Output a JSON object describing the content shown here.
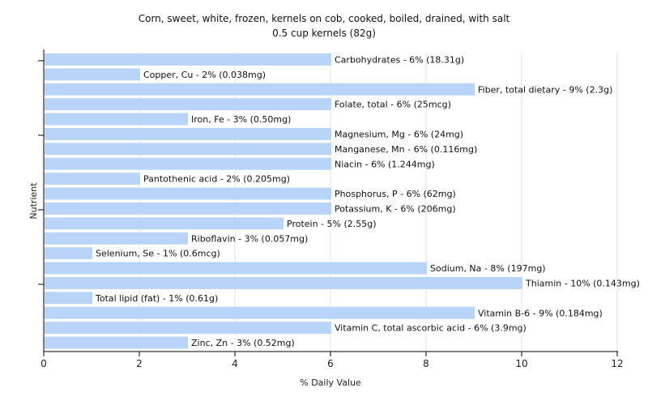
{
  "chart_data": {
    "type": "bar",
    "orientation": "horizontal",
    "title": "Corn, sweet, white, frozen, kernels on cob, cooked, boiled, drained, with salt",
    "subtitle": "0.5 cup kernels (82g)",
    "xlabel": "% Daily Value",
    "ylabel": "Nutrient",
    "xlim": [
      0,
      12
    ],
    "xticks": [
      "0",
      "2",
      "4",
      "6",
      "8",
      "10",
      "12"
    ],
    "grid": true,
    "bar_color": "#b8d4f8",
    "bars": [
      {
        "label": "Carbohydrates - 6% (18.31g)",
        "value": 6
      },
      {
        "label": "Copper, Cu - 2% (0.038mg)",
        "value": 2
      },
      {
        "label": "Fiber, total dietary - 9% (2.3g)",
        "value": 9
      },
      {
        "label": "Folate, total - 6% (25mcg)",
        "value": 6
      },
      {
        "label": "Iron, Fe - 3% (0.50mg)",
        "value": 3
      },
      {
        "label": "Magnesium, Mg - 6% (24mg)",
        "value": 6
      },
      {
        "label": "Manganese, Mn - 6% (0.116mg)",
        "value": 6
      },
      {
        "label": "Niacin - 6% (1.244mg)",
        "value": 6
      },
      {
        "label": "Pantothenic acid - 2% (0.205mg)",
        "value": 2
      },
      {
        "label": "Phosphorus, P - 6% (62mg)",
        "value": 6
      },
      {
        "label": "Potassium, K - 6% (206mg)",
        "value": 6
      },
      {
        "label": "Protein - 5% (2.55g)",
        "value": 5
      },
      {
        "label": "Riboflavin - 3% (0.057mg)",
        "value": 3
      },
      {
        "label": "Selenium, Se - 1% (0.6mcg)",
        "value": 1
      },
      {
        "label": "Sodium, Na - 8% (197mg)",
        "value": 8
      },
      {
        "label": "Thiamin - 10% (0.143mg)",
        "value": 10
      },
      {
        "label": "Total lipid (fat) - 1% (0.61g)",
        "value": 1
      },
      {
        "label": "Vitamin B-6 - 9% (0.184mg)",
        "value": 9
      },
      {
        "label": "Vitamin C, total ascorbic acid - 6% (3.9mg)",
        "value": 6
      },
      {
        "label": "Zinc, Zn - 3% (0.52mg)",
        "value": 3
      }
    ]
  }
}
